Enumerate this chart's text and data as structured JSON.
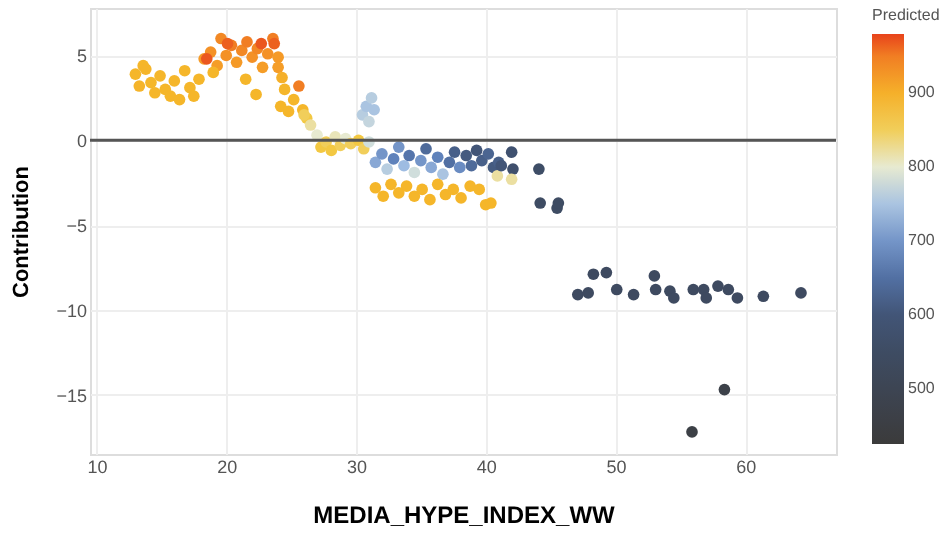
{
  "chart_data": {
    "type": "scatter",
    "xlabel": "MEDIA_HYPE_INDEX_WW",
    "ylabel": "Contribution",
    "legend_title": "Predicted",
    "xlim": [
      9.5,
      67
    ],
    "ylim": [
      -18.5,
      7.8
    ],
    "xticks": [
      10,
      20,
      30,
      40,
      50,
      60
    ],
    "yticks": [
      -15,
      -10,
      -5,
      0,
      5
    ],
    "clim": [
      425,
      980
    ],
    "cticks": [
      500,
      600,
      700,
      800,
      900
    ],
    "grid": true,
    "marker": "circle",
    "ref_lines": [
      {
        "axis": "y",
        "value": 0,
        "color": "#555555"
      }
    ],
    "x": [
      13.0,
      13.3,
      13.6,
      13.8,
      14.2,
      14.5,
      14.9,
      15.3,
      15.7,
      16.0,
      16.4,
      16.8,
      17.2,
      17.5,
      17.9,
      18.3,
      18.8,
      19.3,
      19.6,
      20.0,
      20.4,
      20.8,
      21.2,
      21.6,
      22.0,
      22.4,
      22.8,
      23.2,
      23.6,
      24.0,
      19.0,
      21.5,
      22.3,
      18.5,
      20.1,
      22.7,
      23.7,
      24.0,
      24.3,
      24.5,
      24.2,
      24.8,
      25.2,
      25.6,
      25.9,
      26.2,
      26.5,
      26.0,
      27.0,
      27.3,
      27.7,
      28.1,
      28.4,
      28.8,
      29.2,
      29.6,
      30.2,
      30.6,
      31.0,
      30.5,
      30.8,
      31.2,
      31.0,
      31.4,
      31.5,
      32.0,
      32.4,
      32.9,
      33.3,
      33.7,
      34.1,
      34.5,
      35.0,
      35.4,
      35.8,
      36.3,
      36.7,
      37.2,
      37.6,
      38.0,
      38.5,
      38.9,
      39.3,
      39.7,
      40.2,
      40.6,
      41.0,
      40.9,
      31.5,
      32.1,
      32.7,
      33.3,
      33.9,
      34.5,
      35.1,
      35.7,
      36.3,
      36.9,
      37.5,
      38.1,
      38.8,
      39.5,
      40.0,
      40.4,
      42.0,
      41.2,
      42.1,
      44.1,
      44.2,
      45.5,
      45.6,
      42.0,
      48.3,
      49.3,
      53.0,
      47.1,
      47.9,
      50.1,
      51.4,
      53.1,
      54.2,
      54.5,
      56.0,
      56.8,
      57.0,
      57.9,
      58.7,
      59.4,
      61.4,
      64.3,
      58.4,
      55.9
    ],
    "values": [
      3.9,
      3.2,
      4.4,
      4.2,
      3.4,
      2.8,
      3.8,
      3.0,
      2.6,
      3.5,
      2.4,
      4.1,
      3.1,
      2.6,
      3.6,
      4.8,
      5.2,
      4.4,
      6.0,
      5.0,
      5.6,
      4.6,
      5.3,
      5.8,
      4.9,
      5.4,
      4.3,
      5.1,
      6.0,
      4.9,
      4.0,
      3.6,
      2.7,
      4.8,
      5.7,
      5.7,
      5.7,
      4.3,
      3.7,
      3.0,
      2.0,
      1.7,
      2.4,
      3.2,
      1.8,
      1.3,
      0.9,
      1.5,
      0.3,
      -0.4,
      -0.1,
      -0.6,
      0.2,
      -0.3,
      0.1,
      -0.2,
      0.0,
      -0.5,
      -0.1,
      1.5,
      2.0,
      2.5,
      1.1,
      1.8,
      -1.3,
      -0.8,
      -1.7,
      -1.1,
      -0.4,
      -1.5,
      -0.9,
      -1.9,
      -1.2,
      -0.5,
      -1.6,
      -1.0,
      -2.0,
      -1.3,
      -0.7,
      -1.6,
      -0.9,
      -1.5,
      -0.6,
      -1.2,
      -0.8,
      -1.6,
      -1.3,
      -2.1,
      -2.8,
      -3.3,
      -2.6,
      -3.1,
      -2.7,
      -3.3,
      -2.9,
      -3.5,
      -2.6,
      -3.2,
      -2.9,
      -3.4,
      -2.7,
      -2.9,
      -3.8,
      -3.7,
      -0.7,
      -1.5,
      -1.7,
      -1.7,
      -3.7,
      -4.0,
      -3.7,
      -2.3,
      -7.9,
      -7.8,
      -8.0,
      -9.1,
      -9.0,
      -8.8,
      -9.1,
      -8.8,
      -8.9,
      -9.3,
      -8.8,
      -8.8,
      -9.3,
      -8.6,
      -8.8,
      -9.3,
      -9.2,
      -9.0,
      -14.7,
      -17.2
    ],
    "cvalues": [
      890,
      893,
      890,
      891,
      889,
      890,
      890,
      890,
      890,
      890,
      890,
      890,
      890,
      890,
      890,
      935,
      940,
      930,
      945,
      940,
      950,
      935,
      945,
      950,
      940,
      945,
      930,
      940,
      950,
      935,
      890,
      890,
      890,
      970,
      965,
      970,
      965,
      930,
      900,
      890,
      890,
      890,
      890,
      950,
      890,
      860,
      820,
      850,
      800,
      860,
      850,
      860,
      810,
      850,
      800,
      850,
      860,
      850,
      780,
      760,
      750,
      760,
      770,
      750,
      720,
      700,
      760,
      680,
      700,
      740,
      660,
      780,
      700,
      640,
      720,
      680,
      750,
      650,
      620,
      690,
      610,
      640,
      600,
      620,
      630,
      610,
      620,
      820,
      890,
      890,
      890,
      890,
      890,
      890,
      890,
      890,
      890,
      890,
      890,
      890,
      890,
      890,
      890,
      890,
      590,
      600,
      580,
      560,
      550,
      550,
      550,
      820,
      540,
      540,
      540,
      540,
      540,
      540,
      540,
      540,
      540,
      540,
      540,
      540,
      540,
      540,
      540,
      540,
      540,
      540,
      470,
      460
    ]
  }
}
